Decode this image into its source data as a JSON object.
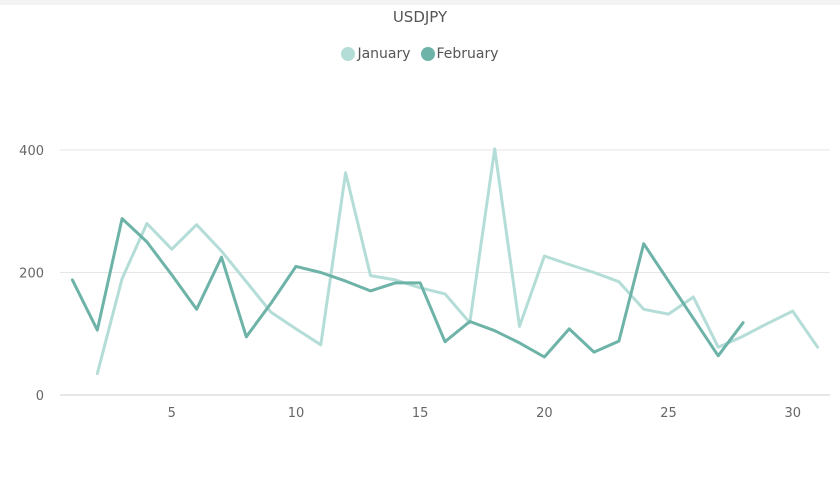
{
  "chart_data": {
    "type": "line",
    "title": "USDJPY",
    "xlabel": "",
    "ylabel": "",
    "xlim": [
      0.5,
      31.5
    ],
    "ylim": [
      0,
      450
    ],
    "x_ticks": [
      5,
      10,
      15,
      20,
      25,
      30
    ],
    "y_ticks": [
      0,
      200,
      400
    ],
    "grid": "horizontal",
    "legend_position": "top-center",
    "series": [
      {
        "name": "January",
        "color": "#b4ddd8",
        "x": [
          2,
          3,
          4,
          5,
          6,
          7,
          8,
          9,
          10,
          11,
          12,
          13,
          14,
          15,
          16,
          17,
          18,
          19,
          20,
          21,
          22,
          23,
          24,
          25,
          26,
          27,
          28,
          29,
          30,
          31
        ],
        "y": [
          35,
          190,
          280,
          238,
          278,
          235,
          185,
          135,
          108,
          82,
          363,
          195,
          188,
          175,
          165,
          118,
          402,
          112,
          227,
          213,
          200,
          185,
          140,
          132,
          160,
          78,
          96,
          117,
          137,
          78
        ]
      },
      {
        "name": "February",
        "color": "#6db3a8",
        "x": [
          1,
          2,
          3,
          4,
          5,
          6,
          7,
          8,
          9,
          10,
          11,
          12,
          13,
          14,
          15,
          16,
          17,
          18,
          19,
          20,
          21,
          22,
          23,
          24,
          25,
          26,
          27,
          28
        ],
        "y": [
          188,
          106,
          288,
          250,
          196,
          140,
          225,
          95,
          150,
          210,
          200,
          186,
          170,
          183,
          183,
          87,
          120,
          105,
          85,
          62,
          108,
          70,
          88,
          247,
          186,
          125,
          64,
          118
        ]
      }
    ]
  }
}
